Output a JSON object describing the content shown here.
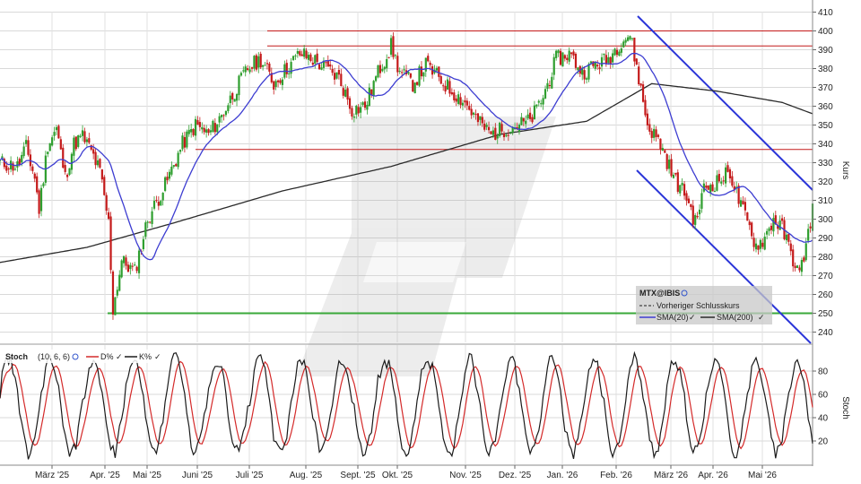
{
  "chart_data": [
    {
      "type": "candlestick",
      "symbol": "MTX@IBIS",
      "ylabel": "Kurs",
      "ylim": [
        235,
        412
      ],
      "yticks": [
        240,
        250,
        260,
        270,
        280,
        290,
        300,
        310,
        320,
        330,
        340,
        350,
        360,
        370,
        380,
        390,
        400,
        410
      ],
      "months": [
        "März '25",
        "Apr. '25",
        "Mai '25",
        "Juni '25",
        "Juli '25",
        "Aug. '25",
        "Sept. '25",
        "Okt. '25",
        "Nov. '25",
        "Dez. '25",
        "Jan. '26",
        "Feb. '26",
        "März '26",
        "Apr. '26",
        "Mai '26"
      ],
      "close_keypoints": [
        [
          0,
          330
        ],
        [
          8,
          328
        ],
        [
          12,
          338
        ],
        [
          16,
          322
        ],
        [
          18,
          305
        ],
        [
          22,
          340
        ],
        [
          26,
          348
        ],
        [
          30,
          322
        ],
        [
          34,
          340
        ],
        [
          38,
          344
        ],
        [
          42,
          336
        ],
        [
          46,
          325
        ],
        [
          50,
          298
        ],
        [
          52,
          252
        ],
        [
          56,
          278
        ],
        [
          62,
          272
        ],
        [
          68,
          300
        ],
        [
          76,
          318
        ],
        [
          84,
          340
        ],
        [
          90,
          350
        ],
        [
          96,
          345
        ],
        [
          102,
          355
        ],
        [
          108,
          368
        ],
        [
          114,
          380
        ],
        [
          120,
          385
        ],
        [
          126,
          372
        ],
        [
          132,
          380
        ],
        [
          138,
          388
        ],
        [
          144,
          385
        ],
        [
          150,
          380
        ],
        [
          156,
          375
        ],
        [
          162,
          358
        ],
        [
          168,
          360
        ],
        [
          174,
          378
        ],
        [
          180,
          392
        ],
        [
          184,
          378
        ],
        [
          190,
          372
        ],
        [
          196,
          382
        ],
        [
          202,
          375
        ],
        [
          208,
          368
        ],
        [
          214,
          362
        ],
        [
          220,
          352
        ],
        [
          226,
          345
        ],
        [
          232,
          348
        ],
        [
          238,
          350
        ],
        [
          244,
          352
        ],
        [
          250,
          365
        ],
        [
          256,
          385
        ],
        [
          262,
          388
        ],
        [
          268,
          378
        ],
        [
          274,
          382
        ],
        [
          280,
          385
        ],
        [
          286,
          395
        ],
        [
          290,
          398
        ],
        [
          294,
          375
        ],
        [
          298,
          350
        ],
        [
          304,
          340
        ],
        [
          310,
          322
        ],
        [
          316,
          312
        ],
        [
          320,
          298
        ],
        [
          324,
          316
        ],
        [
          330,
          320
        ],
        [
          336,
          325
        ],
        [
          340,
          310
        ],
        [
          344,
          298
        ],
        [
          348,
          286
        ],
        [
          352,
          290
        ],
        [
          356,
          300
        ],
        [
          360,
          295
        ],
        [
          364,
          282
        ],
        [
          368,
          270
        ],
        [
          372,
          292
        ],
        [
          374,
          306
        ]
      ],
      "series": [
        {
          "name": "SMA(20)",
          "color": "#3d3dd1"
        },
        {
          "name": "SMA(200)",
          "color": "#2a2a2a"
        }
      ],
      "legend_items": [
        "Vorheriger Schlusskurs",
        "SMA(20)",
        "SMA(200)"
      ],
      "resistance_lines": [
        400,
        392,
        337
      ],
      "support_line": 250,
      "colors": {
        "up": "#2e9e2e",
        "down": "#c41a1a",
        "line_red": "#c41a1a",
        "support": "#3aa83a",
        "channel": "#2b35d8"
      }
    },
    {
      "type": "line",
      "title": "Stoch",
      "params": "(10, 6, 6)",
      "ylabel": "Stoch",
      "ylim": [
        0,
        100
      ],
      "yticks": [
        20,
        40,
        60,
        80
      ],
      "series": [
        {
          "name": "D%",
          "color": "#d42a2a"
        },
        {
          "name": "K%",
          "color": "#1a1a1a"
        }
      ]
    }
  ],
  "legend": {
    "symbol": "MTX@IBIS",
    "prev_close": "Vorheriger Schlusskurs",
    "sma20": "SMA(20)",
    "sma200": "SMA(200)"
  },
  "stoch_header": {
    "title": "Stoch",
    "params": "(10, 6, 6)",
    "d_label": "D%",
    "k_label": "K%"
  },
  "axis": {
    "price_label": "Kurs",
    "stoch_label": "Stoch"
  }
}
